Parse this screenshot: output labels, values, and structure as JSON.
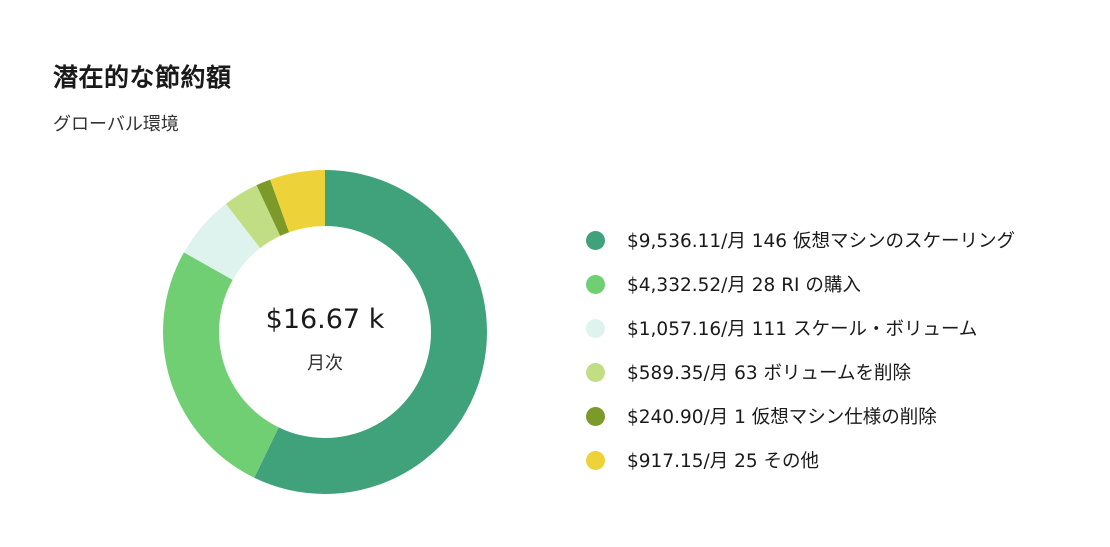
{
  "header": {
    "title": "潜在的な節約額",
    "subtitle": "グローバル環境"
  },
  "center": {
    "value": "$16.67 k",
    "label": "月次"
  },
  "legend": [
    {
      "text": "$9,536.11/月 146 仮想マシンのスケーリング",
      "color": "#3fa27a"
    },
    {
      "text": "$4,332.52/月 28 RI の購入",
      "color": "#6fcf72"
    },
    {
      "text": "$1,057.16/月 111 スケール・ボリューム",
      "color": "#dff3ee"
    },
    {
      "text": "$589.35/月 63 ボリュームを削除",
      "color": "#c2de84"
    },
    {
      "text": "$240.90/月 1 仮想マシン仕様の削除",
      "color": "#7b9a2a"
    },
    {
      "text": "$917.15/月 25 その他",
      "color": "#edd23a"
    }
  ],
  "chart_data": {
    "type": "pie",
    "variant": "donut",
    "title": "潜在的な節約額",
    "subtitle": "グローバル環境",
    "center_value": "$16.67 k",
    "center_label": "月次",
    "unit": "$/月",
    "categories": [
      "仮想マシンのスケーリング",
      "RI の購入",
      "スケール・ボリューム",
      "ボリュームを削除",
      "仮想マシン仕様の削除",
      "その他"
    ],
    "values": [
      9536.11,
      4332.52,
      1057.16,
      589.35,
      240.9,
      917.15
    ],
    "counts": [
      146,
      28,
      111,
      63,
      1,
      25
    ],
    "colors": [
      "#3fa27a",
      "#6fcf72",
      "#dff3ee",
      "#c2de84",
      "#7b9a2a",
      "#edd23a"
    ],
    "start_angle_deg": 0,
    "direction": "clockwise",
    "legend_position": "right"
  }
}
